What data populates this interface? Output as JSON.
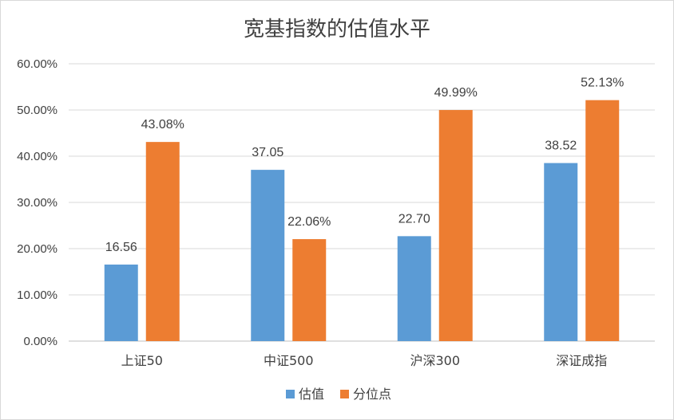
{
  "chart_data": {
    "type": "bar",
    "title": "宽基指数的估值水平",
    "categories": [
      "上证50",
      "中证500",
      "沪深300",
      "深证成指"
    ],
    "series": [
      {
        "name": "估值",
        "color": "#5b9bd5",
        "values": [
          16.56,
          37.05,
          22.7,
          38.52
        ],
        "labels": [
          "16.56",
          "37.05",
          "22.70",
          "38.52"
        ]
      },
      {
        "name": "分位点",
        "color": "#ed7d31",
        "values": [
          43.08,
          22.06,
          49.99,
          52.13
        ],
        "labels": [
          "43.08%",
          "22.06%",
          "49.99%",
          "52.13%"
        ]
      }
    ],
    "ylim": [
      0,
      60
    ],
    "yticks": [
      "0.00%",
      "10.00%",
      "20.00%",
      "30.00%",
      "40.00%",
      "50.00%",
      "60.00%"
    ],
    "grid": true,
    "legend": "bottom"
  }
}
